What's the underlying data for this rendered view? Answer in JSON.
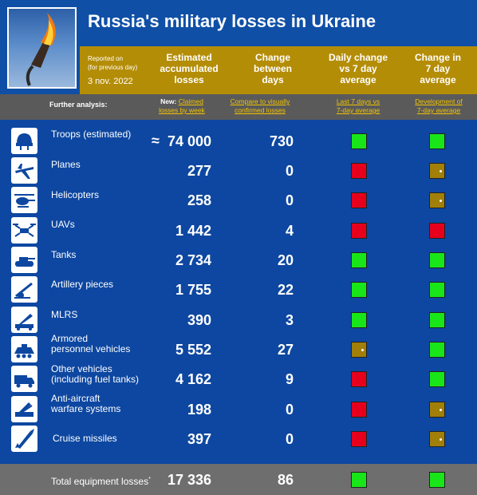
{
  "header": {
    "title": "Russia's military losses in Ukraine",
    "report_label_1": "Reported on",
    "report_label_2": "(for previous day)",
    "report_date": "3 nov. 2022",
    "col_estimated": [
      "Estimated",
      "accumulated",
      "losses"
    ],
    "col_change": [
      "Change",
      "between",
      "days"
    ],
    "col_daily": [
      "Daily change",
      "vs 7 day",
      "average"
    ],
    "col_seven": [
      "Change in",
      "7 day",
      "average"
    ]
  },
  "subheader": {
    "further": "Further analysis:",
    "new_prefix": "New:",
    "new_link_1": "Claimed",
    "new_link_2": "losses by week",
    "compare_1": "Compare to visually",
    "compare_2": "confirmed losses",
    "last7_1": "Last 7 days vs",
    "last7_2": "7-day average",
    "dev_1": "Development of",
    "dev_2": "7-day average"
  },
  "rows": [
    {
      "label": [
        "Troops (estimated)"
      ],
      "prefix": "≈",
      "value": "74 000",
      "change": "730",
      "daily": "green",
      "seven": "green",
      "icon": "helmet-icon"
    },
    {
      "label": [
        "Planes"
      ],
      "prefix": "",
      "value": "277",
      "change": "0",
      "daily": "red",
      "seven": "olive",
      "icon": "plane-icon"
    },
    {
      "label": [
        "Helicopters"
      ],
      "prefix": "",
      "value": "258",
      "change": "0",
      "daily": "red",
      "seven": "olive",
      "icon": "helicopter-icon"
    },
    {
      "label": [
        "UAVs"
      ],
      "prefix": "",
      "value": "1 442",
      "change": "4",
      "daily": "red",
      "seven": "red",
      "icon": "drone-icon"
    },
    {
      "label": [
        "Tanks"
      ],
      "prefix": "",
      "value": "2 734",
      "change": "20",
      "daily": "green",
      "seven": "green",
      "icon": "tank-icon"
    },
    {
      "label": [
        "Artillery pieces"
      ],
      "prefix": "",
      "value": "1 755",
      "change": "22",
      "daily": "green",
      "seven": "green",
      "icon": "artillery-icon"
    },
    {
      "label": [
        "MLRS"
      ],
      "prefix": "",
      "value": "390",
      "change": "3",
      "daily": "green",
      "seven": "green",
      "icon": "rocket-launcher-icon"
    },
    {
      "label": [
        "Armored",
        "personnel vehicles"
      ],
      "prefix": "",
      "value": "5 552",
      "change": "27",
      "daily": "olive",
      "seven": "green",
      "icon": "apc-icon"
    },
    {
      "label": [
        "Other vehicles",
        "(including fuel tanks)"
      ],
      "prefix": "",
      "value": "4 162",
      "change": "9",
      "daily": "red",
      "seven": "green",
      "icon": "truck-icon"
    },
    {
      "label": [
        "Anti-aircraft",
        "warfare systems"
      ],
      "prefix": "",
      "value": "198",
      "change": "0",
      "daily": "red",
      "seven": "olive",
      "icon": "anti-aircraft-icon"
    },
    {
      "label": [
        "Cruise missiles"
      ],
      "prefix": "",
      "value": "397",
      "change": "0",
      "daily": "red",
      "seven": "olive",
      "icon": "missile-icon"
    }
  ],
  "total": {
    "label": "Total equipment losses",
    "marker": "*",
    "value": "17 336",
    "change": "86",
    "daily": "green",
    "seven": "green"
  },
  "colors": {
    "green": "#19e619",
    "red": "#e6001c",
    "olive": "#a17f08",
    "blue": "#0d47a1",
    "gold": "#b48d07"
  }
}
